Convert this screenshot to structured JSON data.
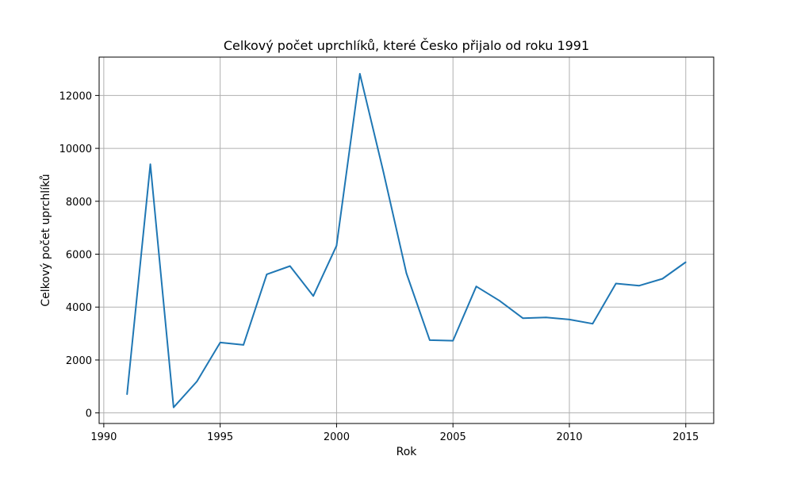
{
  "chart_data": {
    "type": "line",
    "title": "Celkový počet uprchlíků, které Česko přijalo od roku 1991",
    "xlabel": "Rok",
    "ylabel": "Celkový počet uprchlíků",
    "xlim": [
      1989.8,
      2016.2
    ],
    "ylim": [
      -400,
      13450
    ],
    "xticks": [
      1990,
      1995,
      2000,
      2005,
      2010,
      2015
    ],
    "yticks": [
      0,
      2000,
      4000,
      6000,
      8000,
      10000,
      12000
    ],
    "grid": true,
    "series": [
      {
        "color": "#1f77b4",
        "x": [
          1991,
          1992,
          1993,
          1994,
          1995,
          1996,
          1997,
          1998,
          1999,
          2000,
          2001,
          2002,
          2003,
          2004,
          2005,
          2006,
          2007,
          2008,
          2009,
          2010,
          2011,
          2012,
          2013,
          2014,
          2015
        ],
        "y": [
          700,
          9400,
          210,
          1190,
          2660,
          2570,
          5240,
          5550,
          4420,
          6320,
          12820,
          9160,
          5280,
          2750,
          2730,
          4780,
          4240,
          3580,
          3610,
          3530,
          3370,
          4890,
          4810,
          5070,
          5700
        ]
      }
    ]
  }
}
